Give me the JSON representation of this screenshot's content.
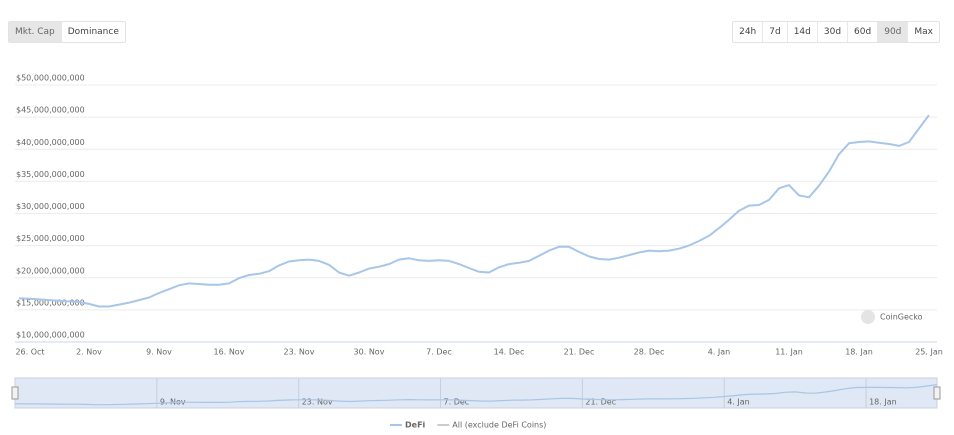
{
  "controls": {
    "view": [
      "Mkt. Cap",
      "Dominance"
    ],
    "view_active": 0,
    "periods": [
      "24h",
      "7d",
      "14d",
      "30d",
      "60d",
      "90d",
      "Max"
    ],
    "period_active": 5
  },
  "watermark": "CoinGecko",
  "chart_data": {
    "type": "line",
    "categories": [
      "26. Oct",
      null,
      null,
      null,
      null,
      null,
      null,
      "2. Nov",
      null,
      null,
      null,
      null,
      null,
      null,
      "9. Nov",
      null,
      null,
      null,
      null,
      null,
      null,
      "16. Nov",
      null,
      null,
      null,
      null,
      null,
      null,
      "23. Nov",
      null,
      null,
      null,
      null,
      null,
      null,
      "30. Nov",
      null,
      null,
      null,
      null,
      null,
      null,
      "7. Dec",
      null,
      null,
      null,
      null,
      null,
      null,
      "14. Dec",
      null,
      null,
      null,
      null,
      null,
      null,
      "21. Dec",
      null,
      null,
      null,
      null,
      null,
      null,
      "28. Dec",
      null,
      null,
      null,
      null,
      null,
      null,
      "4. Jan",
      null,
      null,
      null,
      null,
      null,
      null,
      "11. Jan",
      null,
      null,
      null,
      null,
      null,
      null,
      "18. Jan",
      null,
      null,
      null,
      null,
      null,
      null,
      "25. Jan"
    ],
    "series": [
      {
        "name": "DeFi",
        "color": "#a8c6e8",
        "values": [
          16200000000.0,
          16100000000.0,
          16000000000.0,
          15900000000.0,
          15800000000.0,
          15700000000.0,
          15600000000.0,
          15300000000.0,
          14900000000.0,
          14900000000.0,
          15200000000.0,
          15500000000.0,
          15900000000.0,
          16300000000.0,
          17000000000.0,
          17600000000.0,
          18200000000.0,
          18500000000.0,
          18400000000.0,
          18300000000.0,
          18300000000.0,
          18500000000.0,
          19300000000.0,
          19800000000.0,
          20000000000.0,
          20400000000.0,
          21300000000.0,
          21900000000.0,
          22100000000.0,
          22200000000.0,
          22000000000.0,
          21400000000.0,
          20200000000.0,
          19700000000.0,
          20200000000.0,
          20800000000.0,
          21100000000.0,
          21500000000.0,
          22200000000.0,
          22400000000.0,
          22100000000.0,
          22000000000.0,
          22100000000.0,
          22000000000.0,
          21500000000.0,
          20900000000.0,
          20300000000.0,
          20200000000.0,
          21000000000.0,
          21500000000.0,
          21700000000.0,
          22000000000.0,
          22800000000.0,
          23600000000.0,
          24200000000.0,
          24200000000.0,
          23400000000.0,
          22700000000.0,
          22300000000.0,
          22200000000.0,
          22500000000.0,
          22900000000.0,
          23300000000.0,
          23600000000.0,
          23500000000.0,
          23600000000.0,
          23900000000.0,
          24400000000.0,
          25100000000.0,
          25900000000.0,
          27100000000.0,
          28400000000.0,
          29800000000.0,
          30600000000.0,
          30700000000.0,
          31500000000.0,
          33300000000.0,
          33800000000.0,
          32200000000.0,
          31900000000.0,
          33700000000.0,
          35900000000.0,
          38600000000.0,
          40300000000.0,
          40500000000.0,
          40600000000.0,
          40400000000.0,
          40200000000.0,
          39900000000.0,
          40500000000.0,
          42600000000.0,
          44700000000.0
        ]
      }
    ],
    "hidden_series": [
      {
        "name": "All (exclude DeFi Coins)",
        "color": "#cccccc"
      }
    ],
    "ylim": [
      10000000000.0,
      50000000000.0
    ],
    "yticks": [
      {
        "value": 10000000000.0,
        "label": "$10,000,000,000"
      },
      {
        "value": 15000000000.0,
        "label": "$15,000,000,000"
      },
      {
        "value": 20000000000.0,
        "label": "$20,000,000,000"
      },
      {
        "value": 25000000000.0,
        "label": "$25,000,000,000"
      },
      {
        "value": 30000000000.0,
        "label": "$30,000,000,000"
      },
      {
        "value": 35000000000.0,
        "label": "$35,000,000,000"
      },
      {
        "value": 40000000000.0,
        "label": "$40,000,000,000"
      },
      {
        "value": 45000000000.0,
        "label": "$45,000,000,000"
      },
      {
        "value": 50000000000.0,
        "label": "$50,000,000,000"
      }
    ],
    "grid": true
  }
}
